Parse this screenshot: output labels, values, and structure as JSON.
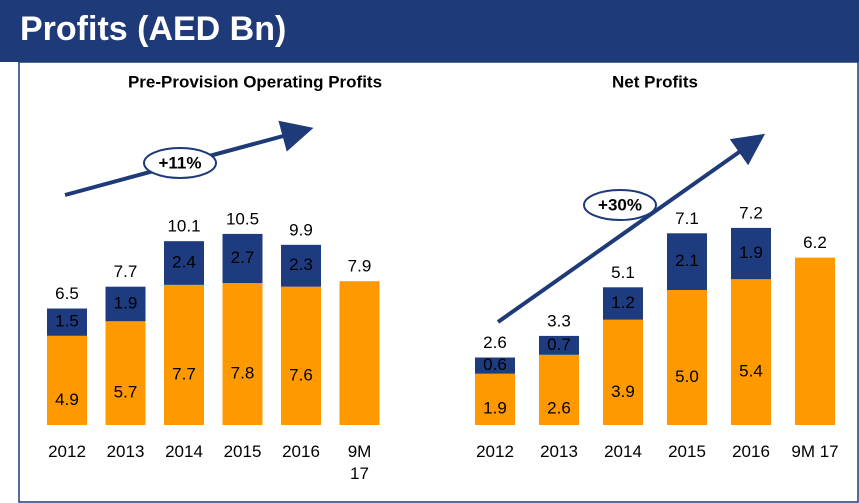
{
  "header": {
    "title": "Profits (AED Bn)"
  },
  "chart_data": [
    {
      "type": "stacked-bar",
      "title": "Pre-Provision Operating Profits",
      "categories": [
        "2012",
        "2013",
        "2014",
        "2015",
        "2016",
        "9M 17"
      ],
      "series": [
        {
          "color": "#ff9900",
          "values": [
            4.9,
            5.7,
            7.7,
            7.8,
            7.6,
            7.9
          ]
        },
        {
          "color": "#1f3b80",
          "values": [
            1.5,
            1.9,
            2.4,
            2.7,
            2.3,
            null
          ]
        }
      ],
      "totals": [
        6.5,
        7.7,
        10.1,
        10.5,
        9.9,
        7.9
      ],
      "annotation": "+11%"
    },
    {
      "type": "stacked-bar",
      "title": "Net Profits",
      "categories": [
        "2012",
        "2013",
        "2014",
        "2015",
        "2016",
        "9M 17"
      ],
      "series": [
        {
          "color": "#ff9900",
          "values": [
            1.9,
            2.6,
            3.9,
            5.0,
            5.4,
            6.2
          ],
          "value_labels": [
            "1.9",
            "2.6",
            "3.9",
            "5.0",
            "5.4",
            "6.2"
          ]
        },
        {
          "color": "#1f3b80",
          "values": [
            0.6,
            0.7,
            1.2,
            2.1,
            1.9,
            null
          ]
        }
      ],
      "totals": [
        2.6,
        3.3,
        5.1,
        7.1,
        7.2,
        6.2
      ],
      "annotation": "+30%"
    }
  ]
}
